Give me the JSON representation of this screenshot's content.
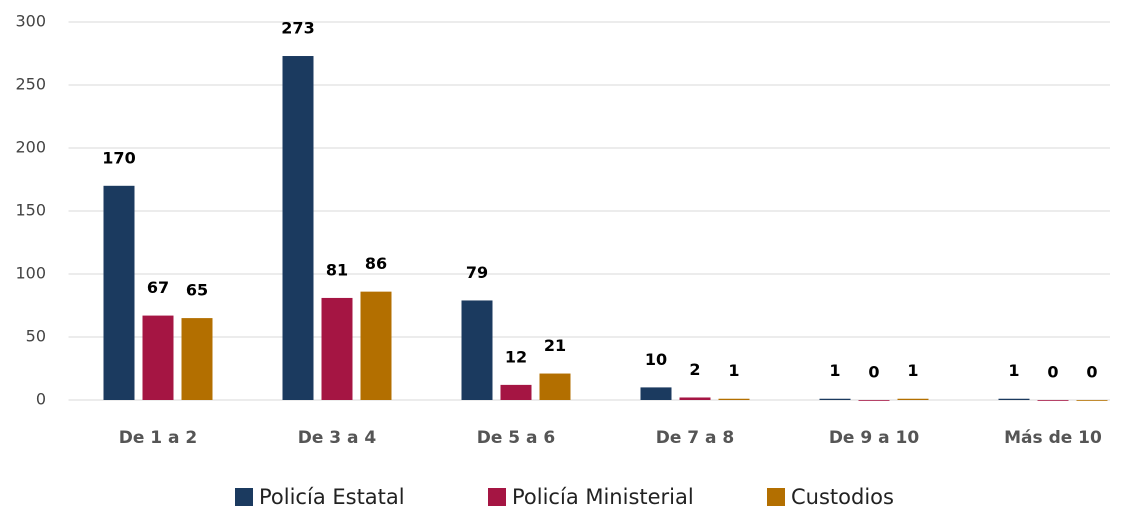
{
  "chart_data": {
    "type": "bar",
    "categories": [
      "De 1 a 2",
      "De 3 a 4",
      "De 5 a 6",
      "De 7 a 8",
      "De 9 a 10",
      "Más de 10"
    ],
    "series": [
      {
        "name": "Policía Estatal",
        "color": "#1b3a5f",
        "values": [
          170,
          273,
          79,
          10,
          1,
          1
        ]
      },
      {
        "name": "Policía Ministerial",
        "color": "#a51543",
        "values": [
          67,
          81,
          12,
          2,
          0,
          0
        ]
      },
      {
        "name": "Custodios",
        "color": "#b36f00",
        "values": [
          65,
          86,
          21,
          1,
          1,
          0
        ]
      }
    ],
    "ylim": [
      0,
      300
    ],
    "yticks": [
      0,
      50,
      100,
      150,
      200,
      250,
      300
    ],
    "grid": true,
    "legend": "bottom"
  }
}
